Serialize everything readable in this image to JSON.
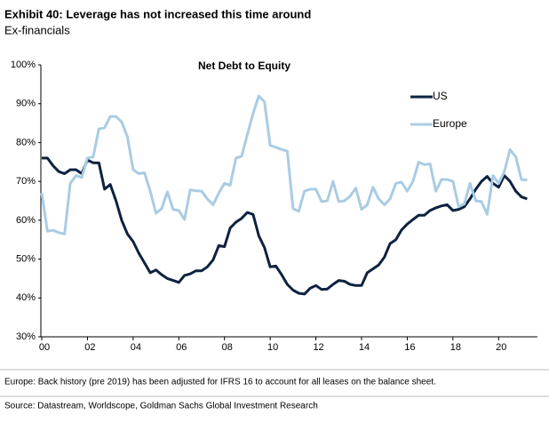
{
  "chart_data": {
    "type": "line",
    "title": "Exhibit 40: Leverage has not increased this time around",
    "subtitle": "Ex-financials",
    "chart_title": "Net Debt to Equity",
    "footnote": "Europe: Back history (pre 2019) has been adjusted for IFRS 16 to account for all leases on the balance sheet.",
    "source": "Source: Datastream, Worldscope, Goldman Sachs Global Investment Research",
    "x": [
      2000,
      2000.25,
      2000.5,
      2000.75,
      2001,
      2001.25,
      2001.5,
      2001.75,
      2002,
      2002.25,
      2002.5,
      2002.75,
      2003,
      2003.25,
      2003.5,
      2003.75,
      2004,
      2004.25,
      2004.5,
      2004.75,
      2005,
      2005.25,
      2005.5,
      2005.75,
      2006,
      2006.25,
      2006.5,
      2006.75,
      2007,
      2007.25,
      2007.5,
      2007.75,
      2008,
      2008.25,
      2008.5,
      2008.75,
      2009,
      2009.25,
      2009.5,
      2009.75,
      2010,
      2010.25,
      2010.5,
      2010.75,
      2011,
      2011.25,
      2011.5,
      2011.75,
      2012,
      2012.25,
      2012.5,
      2012.75,
      2013,
      2013.25,
      2013.5,
      2013.75,
      2014,
      2014.25,
      2014.5,
      2014.75,
      2015,
      2015.25,
      2015.5,
      2015.75,
      2016,
      2016.25,
      2016.5,
      2016.75,
      2017,
      2017.25,
      2017.5,
      2017.75,
      2018,
      2018.25,
      2018.5,
      2018.75,
      2019,
      2019.25,
      2019.5,
      2019.75,
      2020,
      2020.25,
      2020.5,
      2020.75,
      2021,
      2021.25
    ],
    "series": [
      {
        "name": "US",
        "color": "#0d2240",
        "values": [
          76,
          76,
          74,
          72.5,
          72,
          73,
          73,
          72,
          75.5,
          74.8,
          74.8,
          68,
          69.2,
          65,
          60,
          56.5,
          54.5,
          51.5,
          49,
          46.5,
          47.2,
          46,
          45,
          44.5,
          44,
          45.8,
          46.2,
          47,
          47,
          48,
          49.8,
          53.5,
          53.2,
          58,
          59.5,
          60.5,
          62,
          61.5,
          56,
          53,
          48,
          48.2,
          46,
          43.5,
          42,
          41.2,
          41,
          42.5,
          43.2,
          42.2,
          42.3,
          43.5,
          44.5,
          44.3,
          43.5,
          43.2,
          43.2,
          46.5,
          47.5,
          48.5,
          50.5,
          54,
          55,
          57.5,
          59,
          60.2,
          61.3,
          61.3,
          62.5,
          63.2,
          63.7,
          64,
          62.5,
          62.8,
          63.5,
          65.5,
          68,
          70,
          71.3,
          69.5,
          68.5,
          71.5,
          70,
          67.5,
          66,
          65.5
        ]
      },
      {
        "name": "Europe",
        "color": "#a9cce3",
        "values": [
          67,
          57.2,
          57.4,
          56.8,
          56.5,
          69.5,
          71.5,
          71,
          76,
          76.3,
          83.5,
          83.8,
          86.7,
          86.7,
          85.3,
          81.5,
          73,
          72,
          72.2,
          67.5,
          61.8,
          63,
          67.3,
          62.8,
          62.5,
          60.2,
          67.8,
          67.6,
          67.5,
          65.5,
          64,
          67,
          69.5,
          69,
          76,
          76.5,
          82,
          87.5,
          92,
          90.5,
          79.3,
          78.8,
          78.2,
          77.8,
          63,
          62.3,
          67.5,
          68,
          68,
          64.8,
          65,
          70,
          64.8,
          65,
          66.2,
          68.3,
          62.8,
          64,
          68.5,
          65.5,
          64,
          65.5,
          69.5,
          69.8,
          67.5,
          70,
          75,
          74.3,
          74.5,
          67.5,
          70.5,
          70.5,
          70,
          63.5,
          64.2,
          69.5,
          65,
          64.8,
          61.5,
          71.5,
          69.5,
          72.5,
          78.2,
          76.3,
          70.5,
          70.3
        ]
      }
    ],
    "xlim": [
      2000,
      2021.7
    ],
    "xticks": [
      {
        "value": 2000,
        "label": "00"
      },
      {
        "value": 2002,
        "label": "02"
      },
      {
        "value": 2004,
        "label": "04"
      },
      {
        "value": 2006,
        "label": "06"
      },
      {
        "value": 2008,
        "label": "08"
      },
      {
        "value": 2010,
        "label": "10"
      },
      {
        "value": 2012,
        "label": "12"
      },
      {
        "value": 2014,
        "label": "14"
      },
      {
        "value": 2016,
        "label": "16"
      },
      {
        "value": 2018,
        "label": "18"
      },
      {
        "value": 2020,
        "label": "20"
      }
    ],
    "ylim": [
      30,
      100
    ],
    "yticks": [
      {
        "value": 30,
        "label": "30%"
      },
      {
        "value": 40,
        "label": "40%"
      },
      {
        "value": 50,
        "label": "50%"
      },
      {
        "value": 60,
        "label": "60%"
      },
      {
        "value": 70,
        "label": "70%"
      },
      {
        "value": 80,
        "label": "80%"
      },
      {
        "value": 90,
        "label": "90%"
      },
      {
        "value": 100,
        "label": "100%"
      }
    ],
    "grid": false,
    "legend": "upper-right"
  }
}
